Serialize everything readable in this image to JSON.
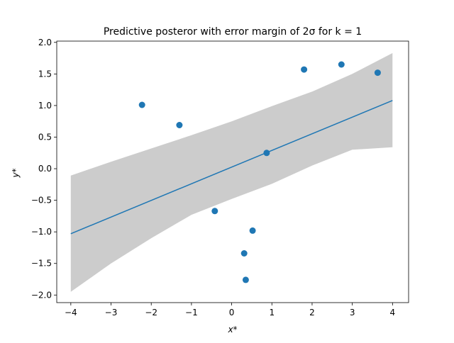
{
  "chart_data": {
    "type": "scatter",
    "title": "Predictive posteror with error margin of 2σ for k = 1",
    "xlabel": "x*",
    "ylabel": "y*",
    "xlim": [
      -4.35,
      4.4
    ],
    "ylim": [
      -2.12,
      2.02
    ],
    "xticks": [
      -4,
      -3,
      -2,
      -1,
      0,
      1,
      2,
      3,
      4
    ],
    "xtick_labels": [
      "−4",
      "−3",
      "−2",
      "−1",
      "0",
      "1",
      "2",
      "3",
      "4"
    ],
    "yticks": [
      -2.0,
      -1.5,
      -1.0,
      -0.5,
      0.0,
      0.5,
      1.0,
      1.5,
      2.0
    ],
    "ytick_labels": [
      "−2.0",
      "−1.5",
      "−1.0",
      "−0.5",
      "0.0",
      "0.5",
      "1.0",
      "1.5",
      "2.0"
    ],
    "grid": false,
    "colors": {
      "points": "#1f77b4",
      "mean_line": "#1f77b4",
      "band": "#cccccc"
    },
    "points": [
      {
        "x": -2.23,
        "y": 1.01
      },
      {
        "x": -1.3,
        "y": 0.69
      },
      {
        "x": -0.42,
        "y": -0.67
      },
      {
        "x": 0.31,
        "y": -1.34
      },
      {
        "x": 0.35,
        "y": -1.76
      },
      {
        "x": 0.52,
        "y": -0.98
      },
      {
        "x": 0.87,
        "y": 0.25
      },
      {
        "x": 1.8,
        "y": 1.57
      },
      {
        "x": 2.73,
        "y": 1.65
      },
      {
        "x": 3.63,
        "y": 1.52
      }
    ],
    "mean_line": {
      "x": [
        -4.0,
        4.0
      ],
      "y": [
        -1.03,
        1.08
      ]
    },
    "band": {
      "x": [
        -4.0,
        -3.0,
        -2.0,
        -1.0,
        0.0,
        1.0,
        2.0,
        3.0,
        4.0
      ],
      "upper": [
        -0.11,
        0.11,
        0.32,
        0.53,
        0.75,
        0.99,
        1.22,
        1.5,
        1.83
      ],
      "lower": [
        -1.95,
        -1.5,
        -1.1,
        -0.73,
        -0.48,
        -0.24,
        0.05,
        0.3,
        0.34
      ]
    }
  }
}
